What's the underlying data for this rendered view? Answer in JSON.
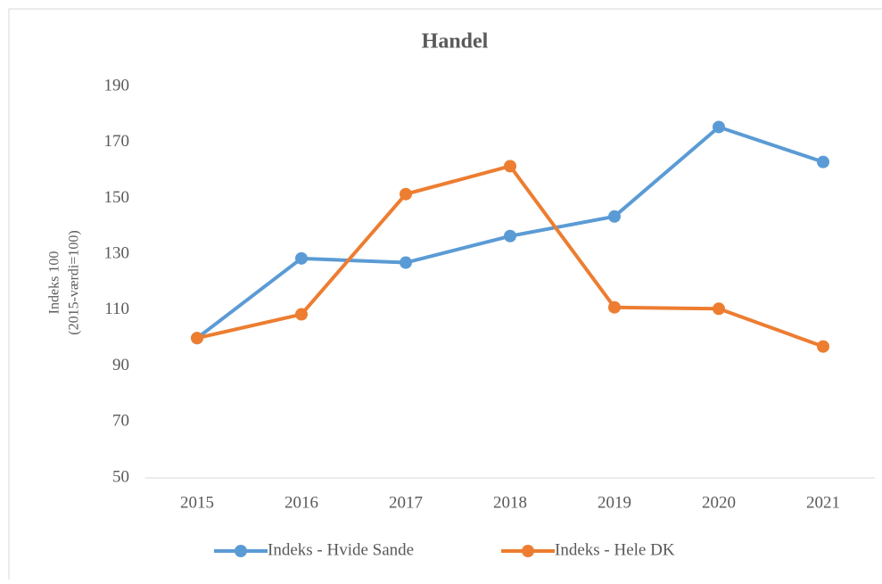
{
  "chart_data": {
    "type": "line",
    "title": "Handel",
    "y_label": [
      "Indeks 100",
      "(2015-værdi=100)"
    ],
    "categories": [
      "2015",
      "2016",
      "2017",
      "2018",
      "2019",
      "2020",
      "2021"
    ],
    "series": [
      {
        "name": "Indeks - Hvide Sande",
        "color": "#5b9bd5",
        "values": [
          100,
          128.5,
          127,
          136.5,
          143.5,
          175.5,
          163
        ]
      },
      {
        "name": "Indeks - Hele DK",
        "color": "#ed7d31",
        "values": [
          100,
          108.5,
          151.5,
          161.5,
          111,
          110.5,
          97
        ]
      }
    ],
    "ylim": [
      50,
      190
    ],
    "yticks": [
      50,
      70,
      90,
      110,
      130,
      150,
      170,
      190
    ],
    "grid": false,
    "legend": "bottom"
  }
}
